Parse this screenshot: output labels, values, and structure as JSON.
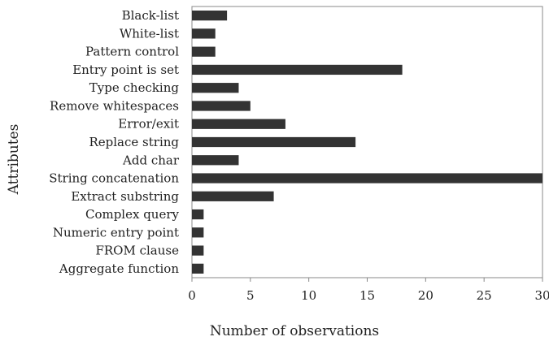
{
  "chart_data": {
    "type": "bar",
    "orientation": "horizontal",
    "categories": [
      "Black-list",
      "White-list",
      "Pattern control",
      "Entry point is set",
      "Type checking",
      "Remove whitespaces",
      "Error/exit",
      "Replace string",
      "Add char",
      "String concatenation",
      "Extract substring",
      "Complex query",
      "Numeric entry point",
      "FROM clause",
      "Aggregate function"
    ],
    "values": [
      3,
      2,
      2,
      18,
      4,
      5,
      8,
      14,
      4,
      30,
      7,
      1,
      1,
      1,
      1
    ],
    "title": "",
    "xlabel": "Number of observations",
    "ylabel": "Attributes",
    "xlim": [
      0,
      30
    ],
    "xticks": [
      0,
      5,
      10,
      15,
      20,
      25,
      30
    ],
    "grid": false,
    "legend": "none",
    "bar_color": "#333333",
    "axis_color": "#888888"
  }
}
